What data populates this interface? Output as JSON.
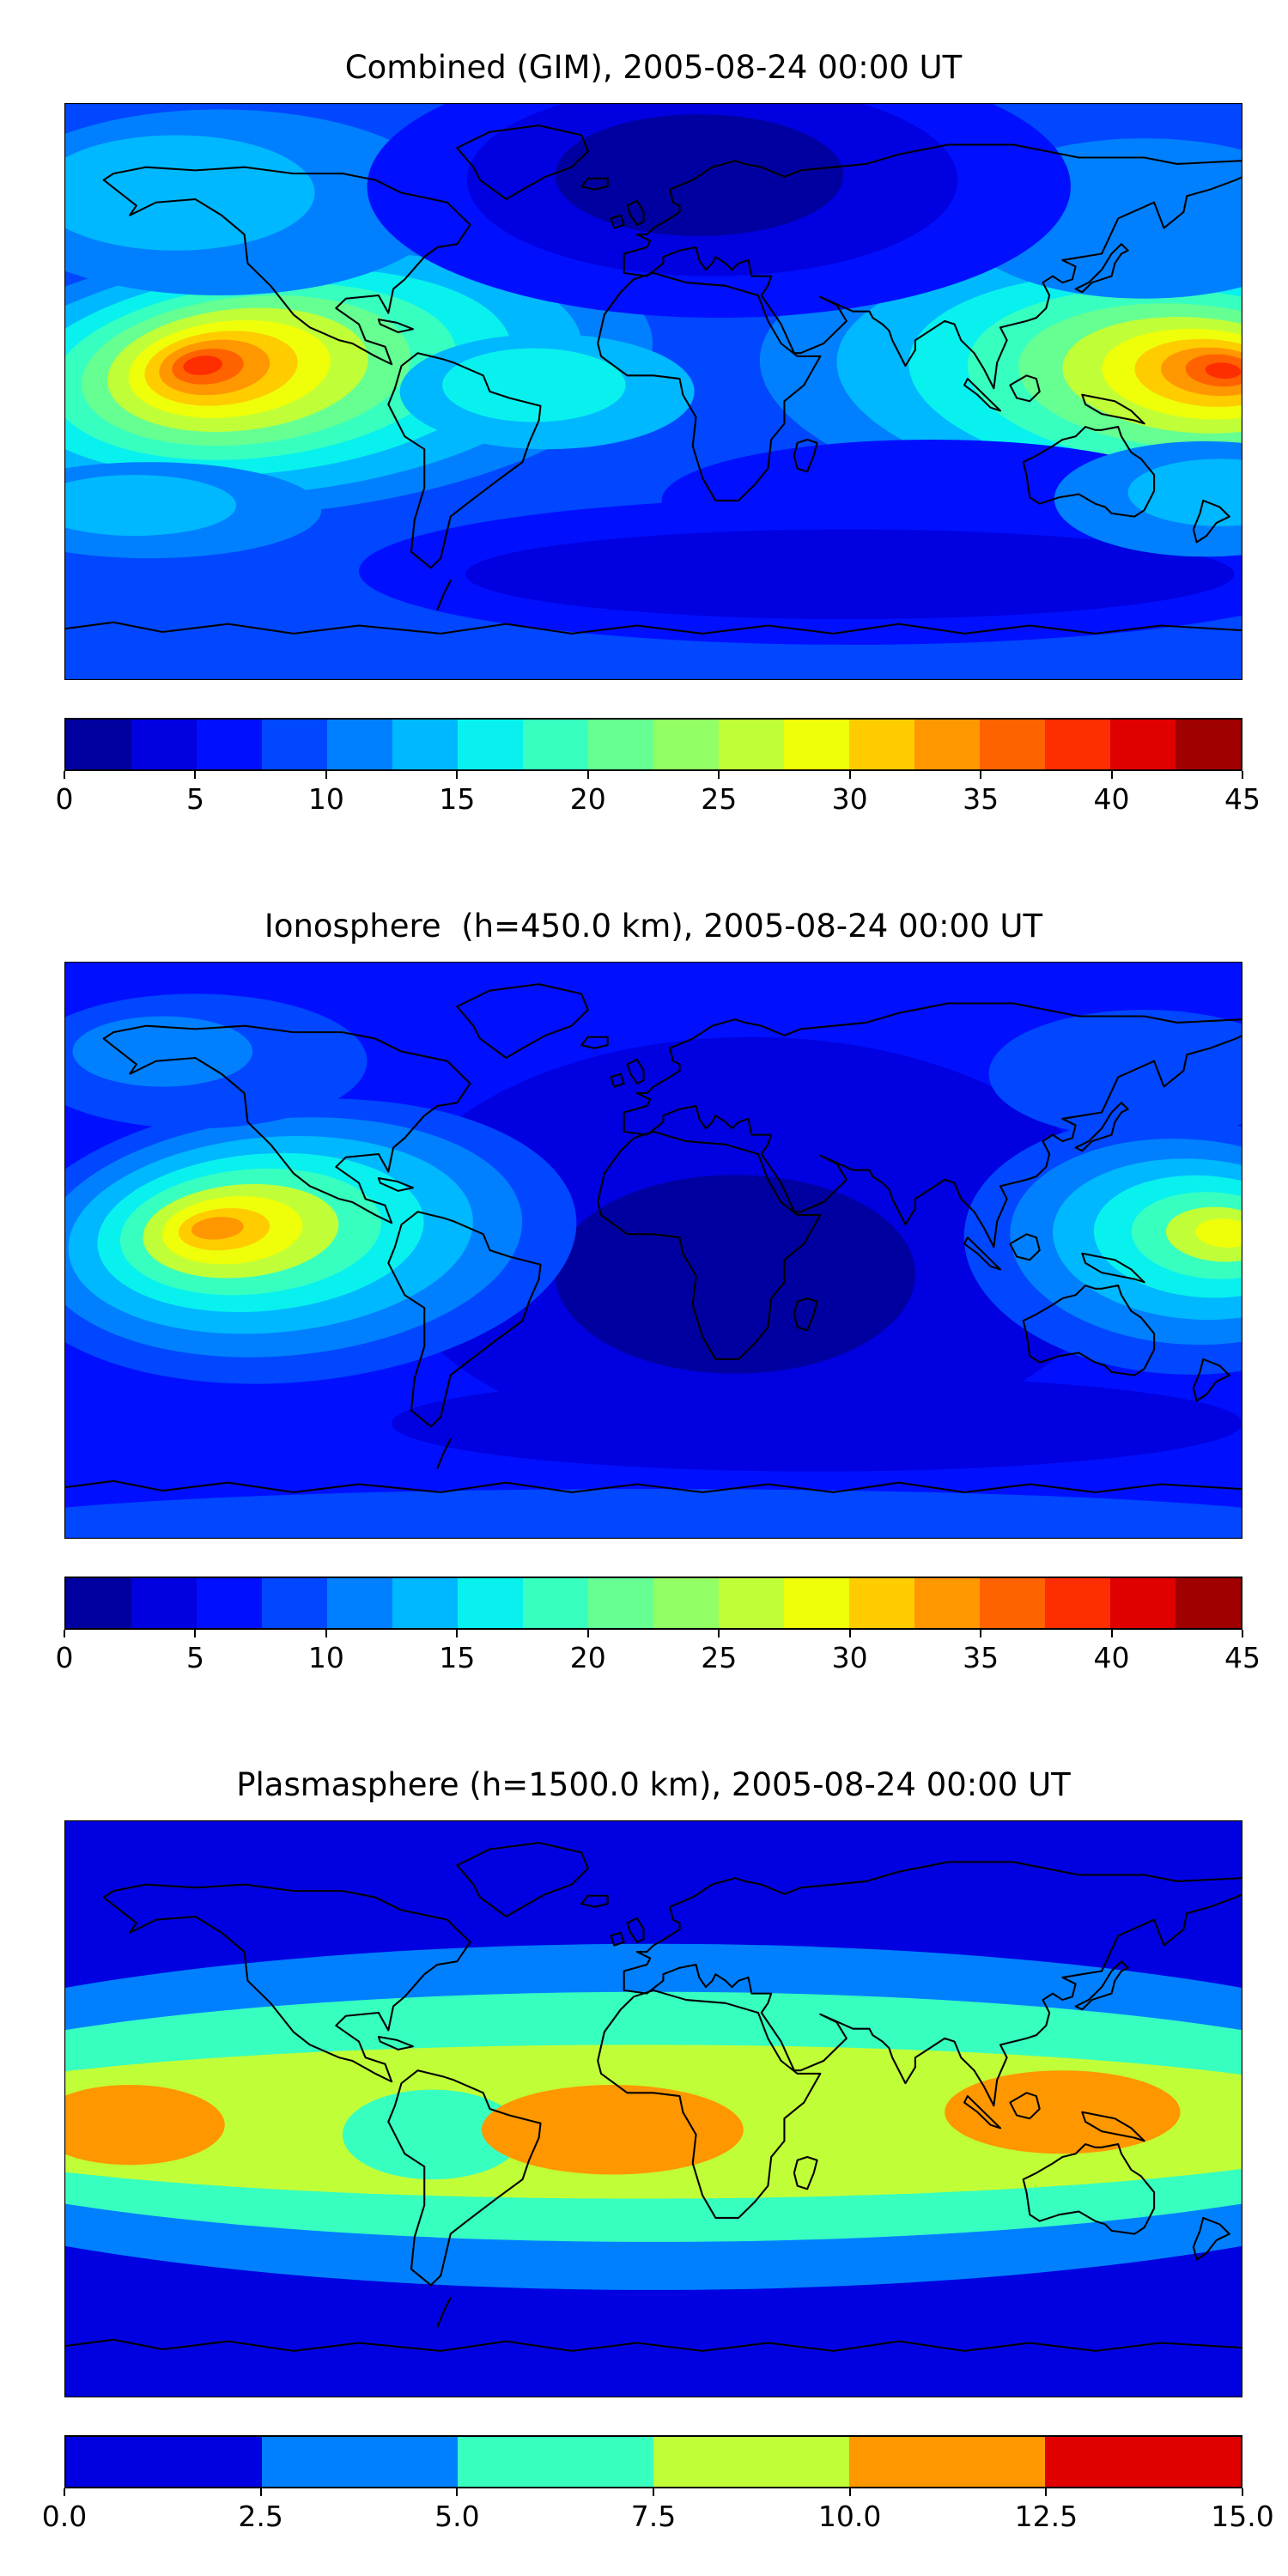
{
  "figure": {
    "background": "#ffffff",
    "colormap": "jet"
  },
  "panels": [
    {
      "title": "Combined (GIM), 2005-08-24 00:00 UT",
      "colorbar": {
        "min": 0,
        "max": 45,
        "tick_labels": [
          "0",
          "5",
          "10",
          "15",
          "20",
          "25",
          "30",
          "35",
          "40",
          "45"
        ],
        "segment_colors": [
          "#0000A0",
          "#0000E0",
          "#0010FF",
          "#0047FF",
          "#0080FF",
          "#00B8FF",
          "#09F1EE",
          "#37FFC0",
          "#65FF92",
          "#92FF65",
          "#C0FF37",
          "#EEFF09",
          "#FFCC00",
          "#FF9700",
          "#FF6300",
          "#FF2E00",
          "#E00000",
          "#A00000"
        ]
      }
    },
    {
      "title": "Ionosphere  (h=450.0 km), 2005-08-24 00:00 UT",
      "colorbar": {
        "min": 0,
        "max": 45,
        "tick_labels": [
          "0",
          "5",
          "10",
          "15",
          "20",
          "25",
          "30",
          "35",
          "40",
          "45"
        ],
        "segment_colors": [
          "#0000A0",
          "#0000E0",
          "#0010FF",
          "#0047FF",
          "#0080FF",
          "#00B8FF",
          "#09F1EE",
          "#37FFC0",
          "#65FF92",
          "#92FF65",
          "#C0FF37",
          "#EEFF09",
          "#FFCC00",
          "#FF9700",
          "#FF6300",
          "#FF2E00",
          "#E00000",
          "#A00000"
        ]
      }
    },
    {
      "title": "Plasmasphere (h=1500.0 km), 2005-08-24 00:00 UT",
      "colorbar": {
        "min": 0,
        "max": 15,
        "tick_labels": [
          "0.0",
          "2.5",
          "5.0",
          "7.5",
          "10.0",
          "12.5",
          "15.0"
        ],
        "segment_colors": [
          "#0000E0",
          "#0080FF",
          "#37FFC0",
          "#C0FF37",
          "#FF9700",
          "#E00000"
        ]
      }
    }
  ],
  "chart_data": [
    {
      "type": "heatmap",
      "title": "Combined (GIM), 2005-08-24 00:00 UT",
      "geometry": "global map, equirectangular projection, longitude -180 to 180, latitude -90 to 90, black coastlines overlaid, no axis tick labels",
      "colormap": "jet",
      "value_range": [
        0,
        45
      ],
      "contour_level_step": 2.5,
      "colorbar_ticks": [
        0,
        5,
        10,
        15,
        20,
        25,
        30,
        35,
        40,
        45
      ],
      "legend_position": "horizontal colorbar below map",
      "features": [
        {
          "feature": "equatorial maximum",
          "region": "eastern Pacific west of Central America",
          "approx_lon": -140,
          "approx_lat": 8,
          "approx_value": 40
        },
        {
          "feature": "equatorial maximum",
          "region": "western Pacific east of the Philippines",
          "approx_lon": 155,
          "approx_lat": 6,
          "approx_value": 42.5
        },
        {
          "feature": "minimum",
          "region": "North Atlantic / northern Europe",
          "approx_lon": 10,
          "approx_lat": 60,
          "approx_value": 2.5
        },
        {
          "feature": "minimum band",
          "region": "southern Indian Ocean mid-latitudes",
          "approx_lon": 60,
          "approx_lat": -55,
          "approx_value": 5
        },
        {
          "feature": "background level",
          "region": "most oceans and continents",
          "approx_value": 7.5
        }
      ]
    },
    {
      "type": "heatmap",
      "title": "Ionosphere  (h=450.0 km), 2005-08-24 00:00 UT",
      "geometry": "global map, equirectangular projection, longitude -180 to 180, latitude -90 to 90, black coastlines overlaid, no axis tick labels",
      "colormap": "jet",
      "value_range": [
        0,
        45
      ],
      "contour_level_step": 2.5,
      "colorbar_ticks": [
        0,
        5,
        10,
        15,
        20,
        25,
        30,
        35,
        40,
        45
      ],
      "legend_position": "horizontal colorbar below map",
      "features": [
        {
          "feature": "equatorial maximum",
          "region": "eastern Pacific west of Mexico",
          "approx_lon": -140,
          "approx_lat": 8,
          "approx_value": 32.5
        },
        {
          "feature": "equatorial maximum",
          "region": "western Pacific",
          "approx_lon": 158,
          "approx_lat": 5,
          "approx_value": 27.5
        },
        {
          "feature": "broad minimum",
          "region": "Africa / South Atlantic / Indian Ocean",
          "approx_lon": 15,
          "approx_lat": -10,
          "approx_value": 2.5
        },
        {
          "feature": "background level",
          "region": "most of map",
          "approx_value": 5
        }
      ]
    },
    {
      "type": "heatmap",
      "title": "Plasmasphere (h=1500.0 km), 2005-08-24 00:00 UT",
      "geometry": "global map, equirectangular projection, longitude -180 to 180, latitude -90 to 90, black coastlines overlaid, no axis tick labels",
      "colormap": "jet",
      "value_range": [
        0,
        15
      ],
      "contour_level_step": 2.5,
      "colorbar_ticks": [
        0,
        2.5,
        5,
        7.5,
        10,
        12.5,
        15
      ],
      "legend_position": "horizontal colorbar below map",
      "features": [
        {
          "feature": "equatorial band",
          "region": "continuous belt within about +-30 deg latitude",
          "approx_value_range": [
            5,
            10
          ]
        },
        {
          "feature": "maximum",
          "region": "central/eastern Pacific near left map edge",
          "approx_lon": -160,
          "approx_lat": 5,
          "approx_value": 11
        },
        {
          "feature": "maximum",
          "region": "northern South America / Atlantic",
          "approx_lon": -15,
          "approx_lat": 3,
          "approx_value": 11
        },
        {
          "feature": "maximum",
          "region": "India / maritime southeast Asia",
          "approx_lon": 125,
          "approx_lat": 8,
          "approx_value": 11
        },
        {
          "feature": "minimum",
          "region": "high latitudes north and south",
          "approx_value": 1.5
        }
      ]
    }
  ]
}
